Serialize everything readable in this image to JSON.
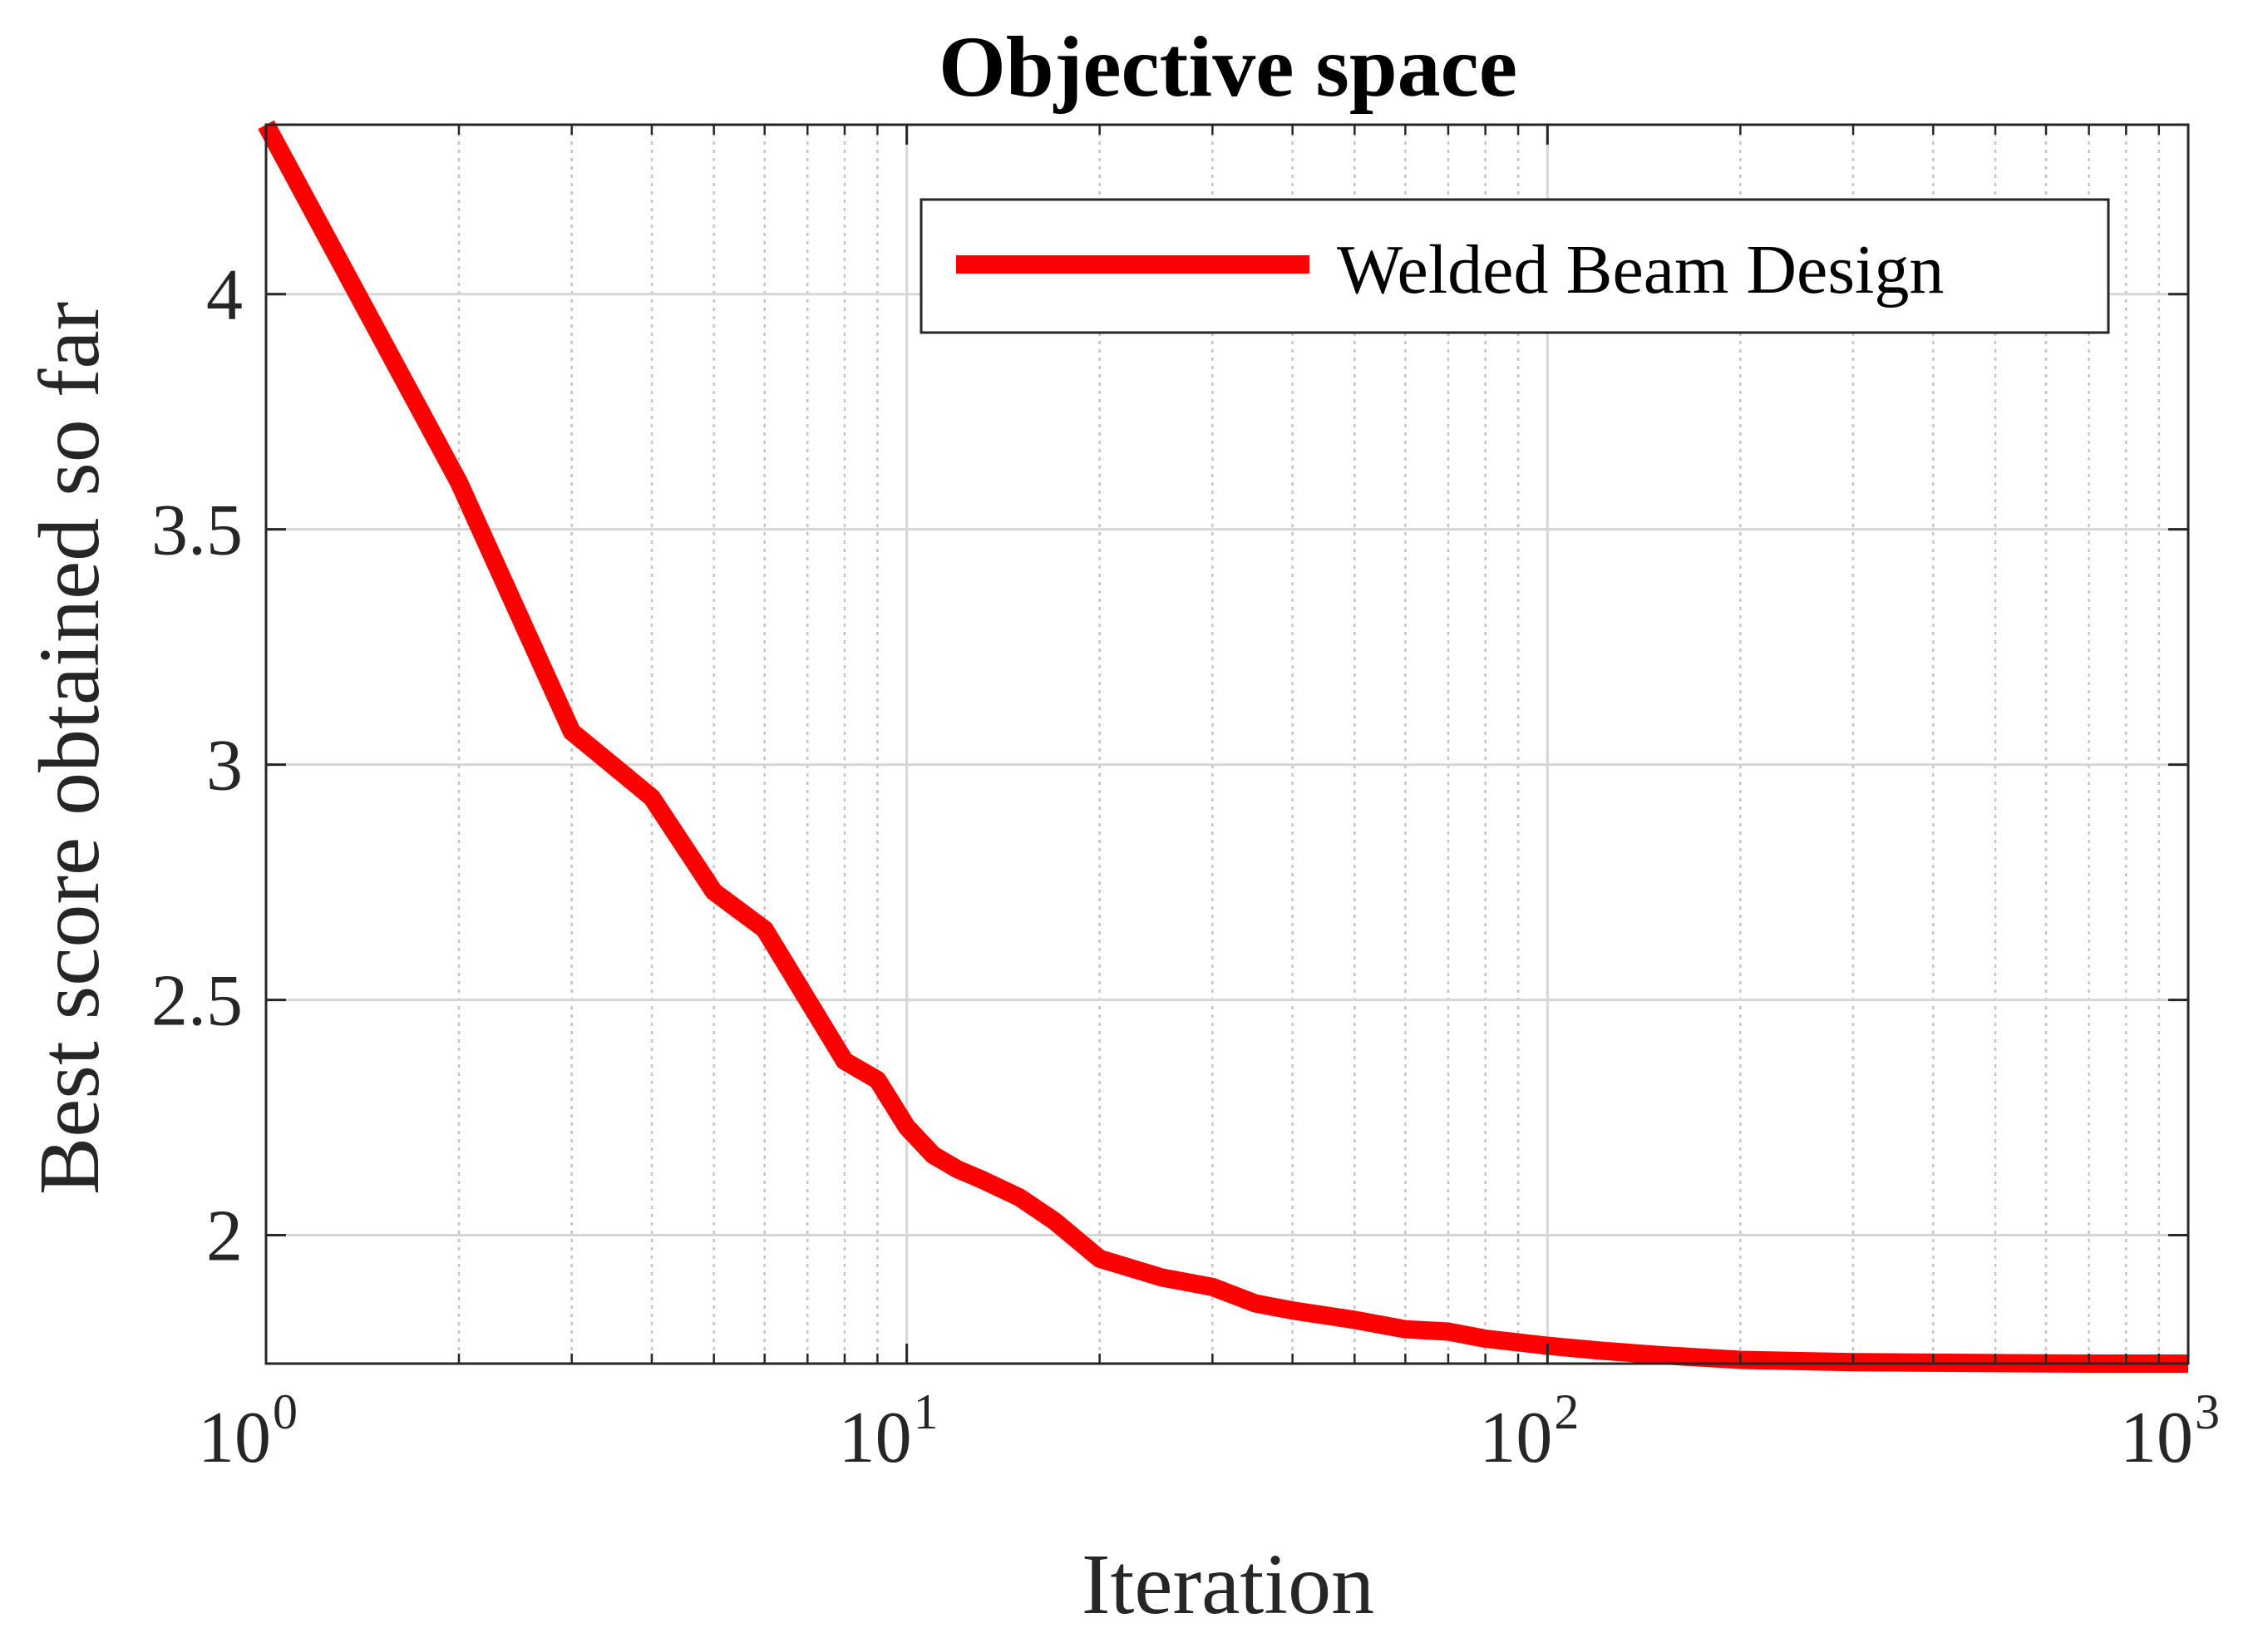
{
  "chart_data": {
    "type": "line",
    "title": "Objective space",
    "xlabel": "Iteration",
    "ylabel": "Best score obtained so far",
    "xscale": "log",
    "xlim": [
      1,
      1000
    ],
    "ylim": [
      1.727,
      4.36
    ],
    "grid": true,
    "legend_position": "top-right",
    "x_ticks": [
      {
        "base": "10",
        "exp": "0",
        "value": 1
      },
      {
        "base": "10",
        "exp": "1",
        "value": 10
      },
      {
        "base": "10",
        "exp": "2",
        "value": 100
      },
      {
        "base": "10",
        "exp": "3",
        "value": 1000
      }
    ],
    "y_ticks": [
      "2",
      "2.5",
      "3",
      "3.5",
      "4"
    ],
    "y_tick_values": [
      2,
      2.5,
      3,
      3.5,
      4
    ],
    "series": [
      {
        "name": "Welded Beam Design",
        "color": "#ff0000",
        "x": [
          1,
          2,
          3,
          4,
          5,
          6,
          7,
          8,
          9,
          10,
          11,
          12,
          13,
          15,
          17,
          20,
          25,
          30,
          35,
          40,
          50,
          60,
          70,
          80,
          100,
          120,
          150,
          200,
          300,
          500,
          700,
          1000
        ],
        "y": [
          4.36,
          3.6,
          3.07,
          2.93,
          2.73,
          2.65,
          2.5,
          2.37,
          2.33,
          2.23,
          2.17,
          2.14,
          2.12,
          2.08,
          2.03,
          1.95,
          1.91,
          1.89,
          1.855,
          1.84,
          1.82,
          1.8,
          1.795,
          1.78,
          1.765,
          1.755,
          1.745,
          1.735,
          1.73,
          1.728,
          1.727,
          1.727
        ]
      }
    ]
  }
}
